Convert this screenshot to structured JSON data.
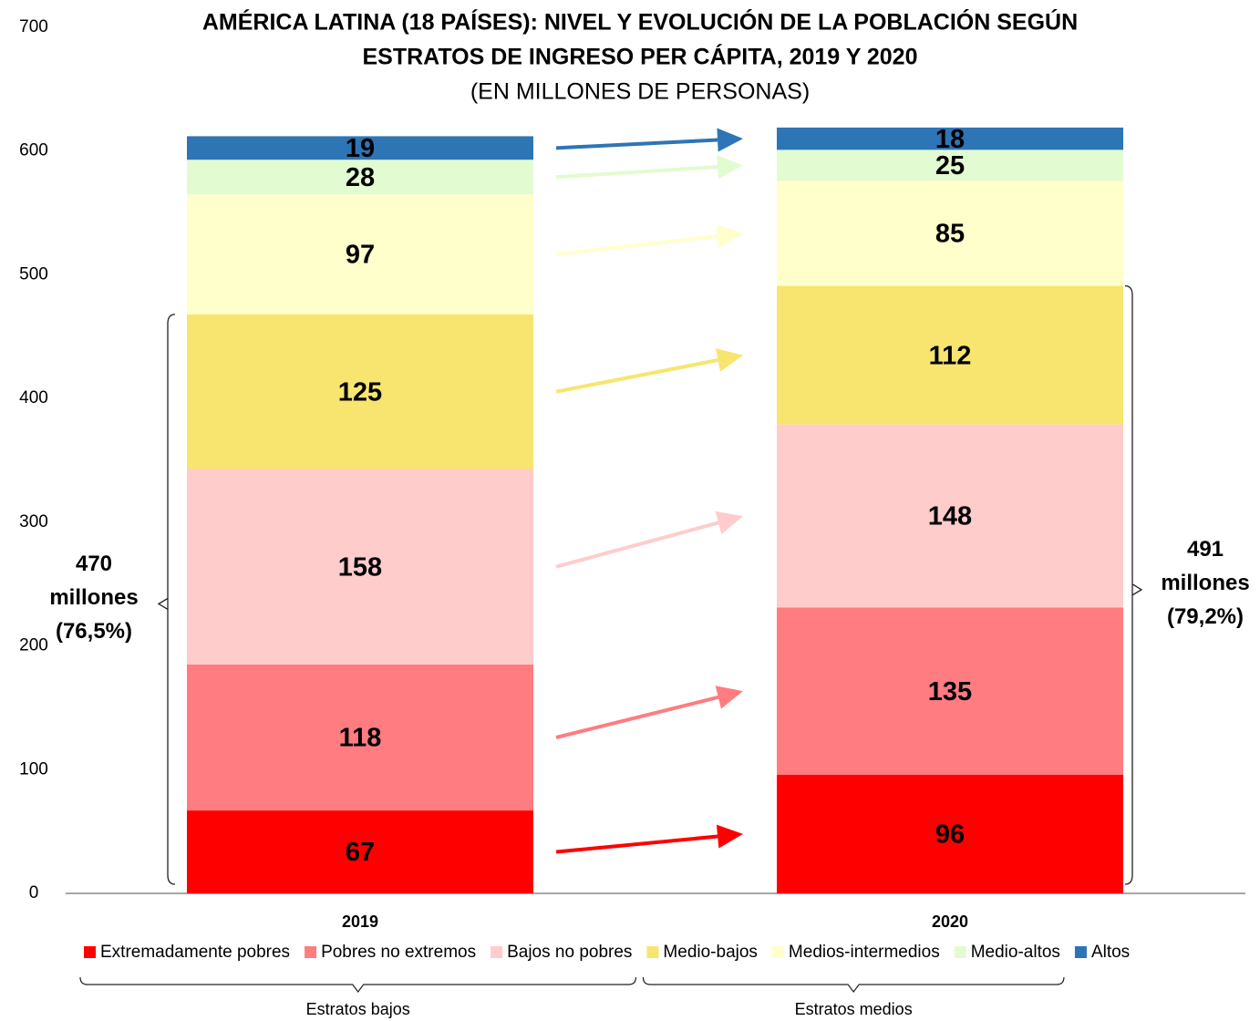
{
  "chart_data": {
    "type": "stacked_bar",
    "title": [
      "AMÉRICA LATINA (18 PAÍSES): NIVEL Y EVOLUCIÓN DE LA POBLACIÓN SEGÚN",
      "ESTRATOS DE INGRESO PER CÁPITA, 2019 Y 2020"
    ],
    "subtitle": "(EN MILLONES DE PERSONAS)",
    "categories": [
      "2019",
      "2020"
    ],
    "series": [
      {
        "name": "Extremadamente pobres",
        "color": "#ff0000",
        "values": [
          67,
          96
        ]
      },
      {
        "name": "Pobres no extremos",
        "color": "#ff7c80",
        "values": [
          118,
          135
        ]
      },
      {
        "name": "Bajos no pobres",
        "color": "#ffcccc",
        "values": [
          158,
          148
        ]
      },
      {
        "name": "Medio-bajos",
        "color": "#f7e570",
        "values": [
          125,
          112
        ]
      },
      {
        "name": "Medios-intermedios",
        "color": "#ffffcc",
        "values": [
          97,
          85
        ]
      },
      {
        "name": "Medio-altos",
        "color": "#e2fbd1",
        "values": [
          28,
          25
        ]
      },
      {
        "name": "Altos",
        "color": "#2e75b6",
        "values": [
          19,
          18
        ]
      }
    ],
    "ylim": [
      0,
      700
    ],
    "yticks": [
      0,
      100,
      200,
      300,
      400,
      500,
      600,
      700
    ],
    "grid": false,
    "annotations": [
      [
        "470",
        "millones",
        "(76,5%)"
      ],
      [
        "491",
        "millones",
        "(79,2%)"
      ]
    ],
    "groups": [
      "Estratos bajos",
      "Estratos medios"
    ]
  }
}
